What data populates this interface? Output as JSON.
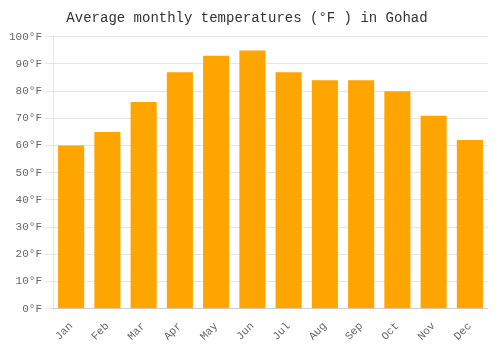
{
  "chart_data": {
    "type": "bar",
    "title": "Average monthly temperatures (°F ) in Gohad",
    "categories": [
      "Jan",
      "Feb",
      "Mar",
      "Apr",
      "May",
      "Jun",
      "Jul",
      "Aug",
      "Sep",
      "Oct",
      "Nov",
      "Dec"
    ],
    "values": [
      60,
      65,
      76,
      87,
      93,
      95,
      87,
      84,
      84,
      80,
      71,
      62
    ],
    "color": "#FFA500",
    "ylim": [
      0,
      100
    ],
    "yticks": [
      {
        "value": 0,
        "label": "0°F"
      },
      {
        "value": 10,
        "label": "10°F"
      },
      {
        "value": 20,
        "label": "20°F"
      },
      {
        "value": 30,
        "label": "30°F"
      },
      {
        "value": 40,
        "label": "40°F"
      },
      {
        "value": 50,
        "label": "50°F"
      },
      {
        "value": 60,
        "label": "60°F"
      },
      {
        "value": 70,
        "label": "70°F"
      },
      {
        "value": 80,
        "label": "80°F"
      },
      {
        "value": 90,
        "label": "90°F"
      },
      {
        "value": 100,
        "label": "100°F"
      }
    ],
    "grid": true
  }
}
